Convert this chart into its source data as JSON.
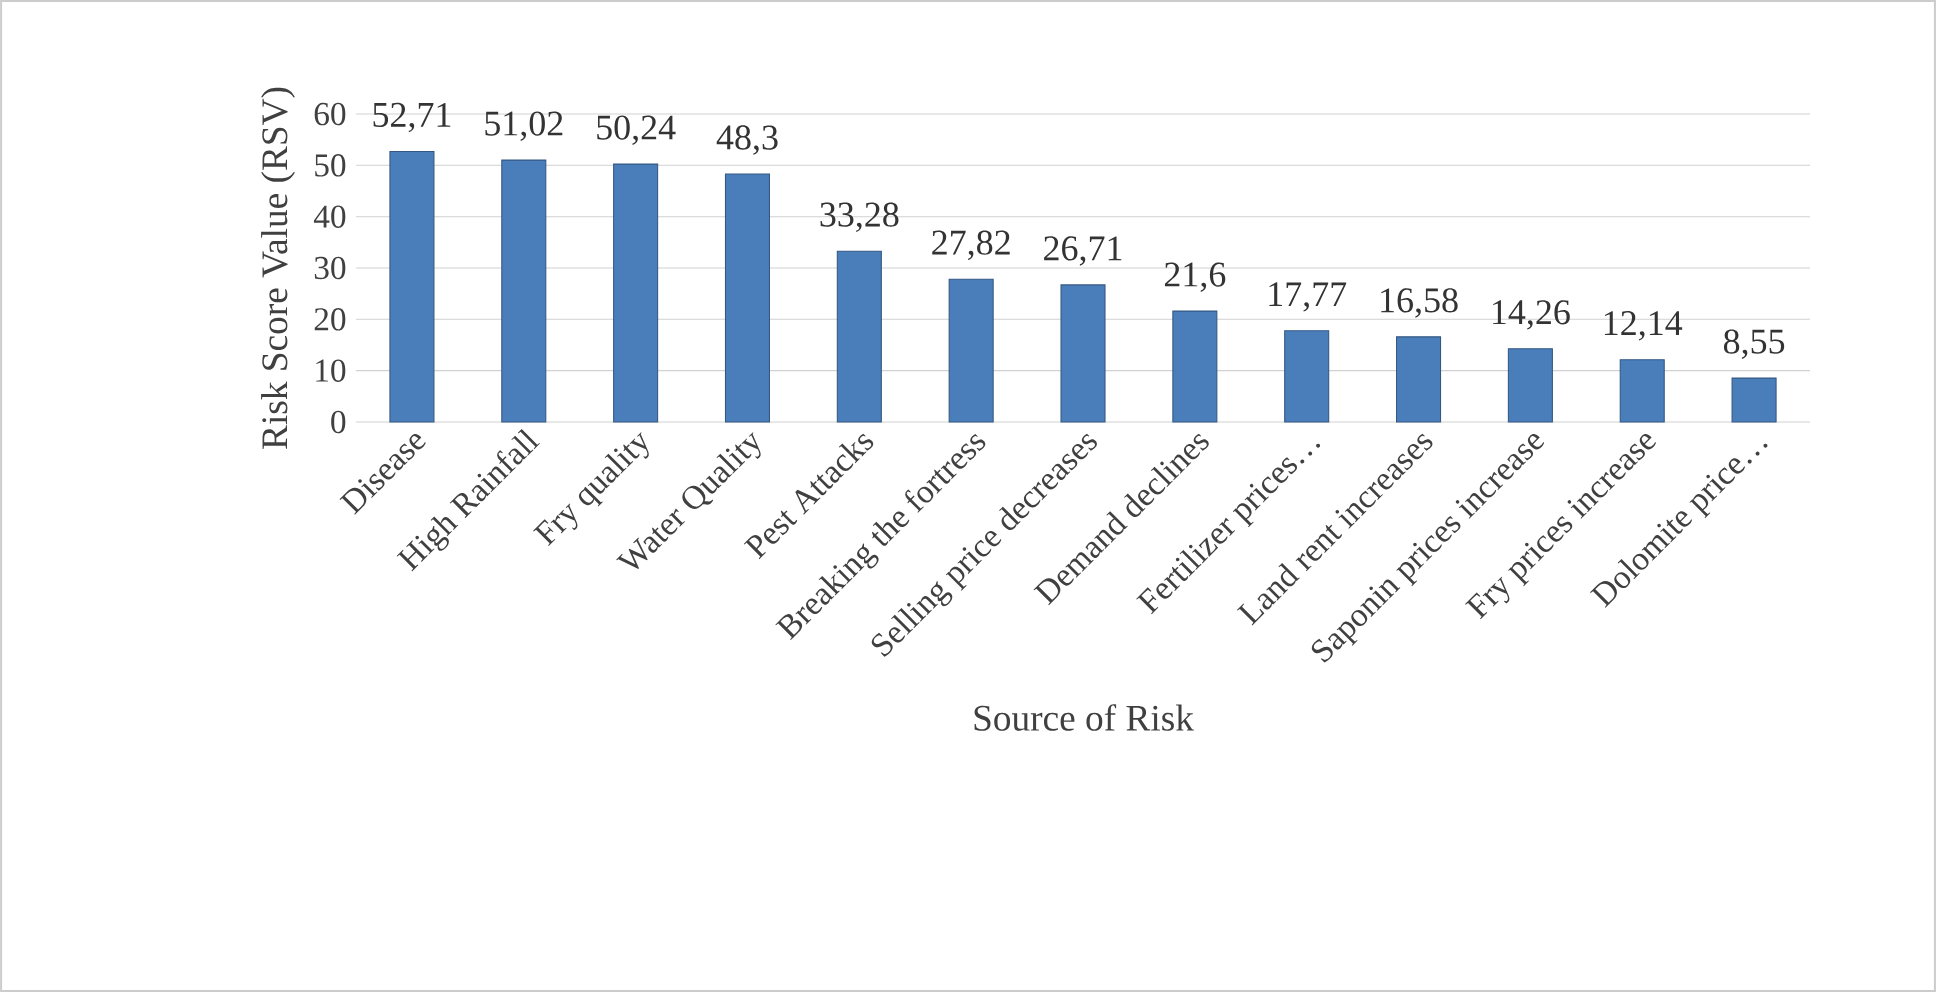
{
  "chart_data": {
    "type": "bar",
    "xlabel": "Source of Risk",
    "ylabel": "Risk Score Value (RSV)",
    "categories": [
      "Disease",
      "High Rainfall",
      "Fry quality",
      "Water Quality",
      "Pest Attacks",
      "Breaking the fortress",
      "Selling price decreases",
      "Demand declines",
      "Fertilizer prices…",
      "Land rent increases",
      "Saponin prices increase",
      "Fry prices increase",
      "Dolomite price…"
    ],
    "values": [
      52.71,
      51.02,
      50.24,
      48.3,
      33.28,
      27.82,
      26.71,
      21.6,
      17.77,
      16.58,
      14.26,
      12.14,
      8.55
    ],
    "value_labels": [
      "52,71",
      "51,02",
      "50,24",
      "48,3",
      "33,28",
      "27,82",
      "26,71",
      "21,6",
      "17,77",
      "16,58",
      "14,26",
      "12,14",
      "8,55"
    ],
    "color": "#4a7ebb",
    "ylim": [
      0,
      60
    ],
    "yticks": [
      0,
      10,
      20,
      30,
      40,
      50,
      60
    ],
    "grid": "y"
  }
}
